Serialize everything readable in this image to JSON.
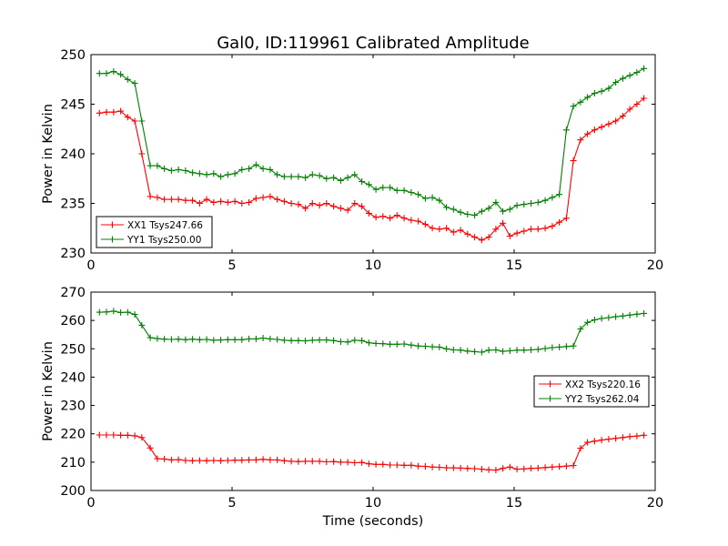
{
  "figure": {
    "title": "Gal0, ID:119961 Calibrated Amplitude",
    "xlabel": "Time (seconds)"
  },
  "colors": {
    "xx": "#ff0000",
    "yy": "#008000"
  },
  "chart_data": [
    {
      "type": "line",
      "ylabel": "Power in Kelvin",
      "xlim": [
        0,
        20
      ],
      "ylim": [
        230,
        250
      ],
      "xticks": [
        "0",
        "5",
        "10",
        "15",
        "20"
      ],
      "yticks": [
        "230",
        "235",
        "240",
        "245",
        "250"
      ],
      "legend_position": "lower-left",
      "x": [
        0.3,
        0.55,
        0.8,
        1.05,
        1.3,
        1.55,
        1.8,
        2.1,
        2.35,
        2.6,
        2.85,
        3.1,
        3.35,
        3.6,
        3.85,
        4.1,
        4.35,
        4.6,
        4.85,
        5.1,
        5.35,
        5.6,
        5.85,
        6.1,
        6.35,
        6.6,
        6.85,
        7.1,
        7.35,
        7.6,
        7.85,
        8.1,
        8.35,
        8.6,
        8.85,
        9.1,
        9.35,
        9.6,
        9.85,
        10.1,
        10.35,
        10.6,
        10.85,
        11.1,
        11.35,
        11.6,
        11.85,
        12.1,
        12.35,
        12.6,
        12.85,
        13.1,
        13.35,
        13.6,
        13.85,
        14.1,
        14.35,
        14.6,
        14.85,
        15.1,
        15.35,
        15.6,
        15.85,
        16.1,
        16.35,
        16.6,
        16.85,
        17.1,
        17.35,
        17.6,
        17.85,
        18.1,
        18.35,
        18.6,
        18.85,
        19.1,
        19.35,
        19.6
      ],
      "series": [
        {
          "name": "XX1 Tsys247.66",
          "color_key": "xx",
          "values": [
            244.1,
            244.2,
            244.2,
            244.3,
            243.7,
            243.3,
            240.0,
            235.7,
            235.6,
            235.4,
            235.4,
            235.4,
            235.3,
            235.3,
            235.0,
            235.4,
            235.1,
            235.2,
            235.1,
            235.2,
            235.0,
            235.1,
            235.5,
            235.6,
            235.7,
            235.4,
            235.2,
            235.0,
            234.9,
            234.5,
            235.0,
            234.8,
            235.0,
            234.7,
            234.5,
            234.3,
            235.0,
            234.7,
            234.0,
            233.6,
            233.7,
            233.5,
            233.8,
            233.5,
            233.3,
            233.2,
            232.9,
            232.5,
            232.4,
            232.5,
            232.1,
            232.3,
            231.9,
            231.6,
            231.3,
            231.6,
            232.4,
            233.0,
            231.7,
            232.0,
            232.2,
            232.4,
            232.4,
            232.5,
            232.7,
            233.1,
            233.5,
            239.3,
            241.4,
            242.0,
            242.4,
            242.7,
            243.0,
            243.3,
            243.8,
            244.5,
            245.0,
            245.6
          ]
        },
        {
          "name": "YY1 Tsys250.00",
          "color_key": "yy",
          "values": [
            248.1,
            248.1,
            248.3,
            248.0,
            247.5,
            247.1,
            243.3,
            238.8,
            238.8,
            238.5,
            238.3,
            238.4,
            238.3,
            238.1,
            238.0,
            237.9,
            238.0,
            237.7,
            237.9,
            238.0,
            238.4,
            238.5,
            238.9,
            238.5,
            238.4,
            237.9,
            237.7,
            237.7,
            237.7,
            237.6,
            237.9,
            237.8,
            237.5,
            237.6,
            237.3,
            237.6,
            237.9,
            237.2,
            236.9,
            236.4,
            236.6,
            236.6,
            236.3,
            236.3,
            236.1,
            235.9,
            235.5,
            235.6,
            235.3,
            234.6,
            234.4,
            234.1,
            233.9,
            233.8,
            234.2,
            234.5,
            235.1,
            234.2,
            234.4,
            234.8,
            234.9,
            235.0,
            235.1,
            235.3,
            235.6,
            235.9,
            242.4,
            244.8,
            245.2,
            245.7,
            246.1,
            246.3,
            246.6,
            247.2,
            247.6,
            247.9,
            248.2,
            248.6
          ]
        }
      ]
    },
    {
      "type": "line",
      "ylabel": "Power in Kelvin",
      "xlim": [
        0,
        20
      ],
      "ylim": [
        200,
        270
      ],
      "xticks": [
        "0",
        "5",
        "10",
        "15",
        "20"
      ],
      "yticks": [
        "200",
        "210",
        "220",
        "230",
        "240",
        "250",
        "260",
        "270"
      ],
      "legend_position": "right",
      "x": [
        0.3,
        0.55,
        0.8,
        1.05,
        1.3,
        1.55,
        1.8,
        2.1,
        2.35,
        2.6,
        2.85,
        3.1,
        3.35,
        3.6,
        3.85,
        4.1,
        4.35,
        4.6,
        4.85,
        5.1,
        5.35,
        5.6,
        5.85,
        6.1,
        6.35,
        6.6,
        6.85,
        7.1,
        7.35,
        7.6,
        7.85,
        8.1,
        8.35,
        8.6,
        8.85,
        9.1,
        9.35,
        9.6,
        9.85,
        10.1,
        10.35,
        10.6,
        10.85,
        11.1,
        11.35,
        11.6,
        11.85,
        12.1,
        12.35,
        12.6,
        12.85,
        13.1,
        13.35,
        13.6,
        13.85,
        14.1,
        14.35,
        14.6,
        14.85,
        15.1,
        15.35,
        15.6,
        15.85,
        16.1,
        16.35,
        16.6,
        16.85,
        17.1,
        17.35,
        17.6,
        17.85,
        18.1,
        18.35,
        18.6,
        18.85,
        19.1,
        19.35,
        19.6
      ],
      "series": [
        {
          "name": "XX2 Tsys220.16",
          "color_key": "xx",
          "values": [
            219.6,
            219.6,
            219.6,
            219.5,
            219.5,
            219.3,
            218.7,
            215.0,
            211.2,
            211.1,
            210.8,
            210.9,
            210.6,
            210.5,
            210.6,
            210.5,
            210.6,
            210.5,
            210.6,
            210.7,
            210.7,
            210.8,
            210.8,
            211.0,
            210.8,
            210.8,
            210.5,
            210.3,
            210.2,
            210.3,
            210.3,
            210.3,
            210.1,
            210.2,
            210.0,
            210.0,
            209.8,
            209.9,
            209.4,
            209.2,
            209.2,
            209.0,
            209.0,
            208.9,
            208.9,
            208.6,
            208.5,
            208.3,
            208.2,
            208.0,
            208.0,
            207.9,
            207.8,
            207.7,
            207.5,
            207.3,
            207.2,
            207.8,
            208.3,
            207.5,
            207.6,
            207.8,
            207.9,
            208.1,
            208.3,
            208.4,
            208.6,
            208.8,
            214.9,
            217.0,
            217.4,
            217.8,
            218.1,
            218.4,
            218.7,
            219.0,
            219.2,
            219.5
          ]
        },
        {
          "name": "YY2 Tsys262.04",
          "color_key": "yy",
          "values": [
            262.9,
            263.0,
            263.3,
            262.8,
            262.9,
            262.1,
            258.3,
            253.9,
            253.6,
            253.4,
            253.3,
            253.4,
            253.2,
            253.4,
            253.2,
            253.3,
            253.0,
            253.1,
            253.2,
            253.2,
            253.2,
            253.5,
            253.5,
            253.8,
            253.5,
            253.3,
            253.0,
            252.9,
            252.9,
            252.8,
            253.0,
            253.1,
            253.1,
            252.9,
            252.5,
            252.4,
            253.0,
            252.9,
            252.1,
            251.9,
            251.8,
            251.6,
            251.6,
            251.7,
            251.3,
            251.0,
            250.9,
            250.7,
            250.6,
            250.0,
            249.6,
            249.5,
            249.2,
            249.0,
            248.8,
            249.5,
            249.6,
            249.1,
            249.3,
            249.5,
            249.5,
            249.6,
            249.8,
            250.1,
            250.4,
            250.6,
            250.8,
            251.0,
            257.0,
            259.3,
            260.2,
            260.7,
            261.0,
            261.3,
            261.6,
            261.9,
            262.2,
            262.5
          ]
        }
      ]
    }
  ]
}
